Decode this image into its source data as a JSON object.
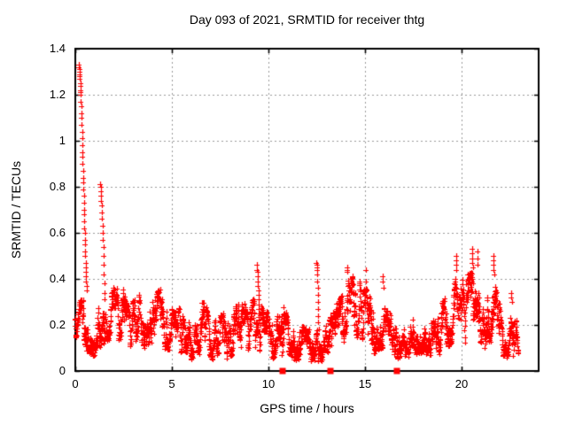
{
  "title": "Day 093 of 2021, SRMTID for receiver thtg",
  "chart_data": {
    "type": "scatter",
    "title": "Day 093 of 2021, SRMTID for receiver thtg",
    "xlabel": "GPS time / hours",
    "ylabel": "SRMTID / TECUs",
    "xlim": [
      0,
      24
    ],
    "ylim": [
      0,
      1.4
    ],
    "xticks": {
      "values": [
        0,
        5,
        10,
        15,
        20
      ],
      "labels": [
        "0",
        "5",
        "10",
        "15",
        "20"
      ]
    },
    "yticks": {
      "values": [
        0,
        0.2,
        0.4,
        0.6,
        0.8,
        1.0,
        1.2,
        1.4
      ],
      "labels": [
        "0",
        "0.2",
        "0.4",
        "0.6",
        "0.8",
        "1",
        "1.2",
        "1.4"
      ]
    },
    "grid": true,
    "legend": "none",
    "marker": {
      "shape": "plus",
      "color": "#ff0000",
      "size": 6
    },
    "zero_flag_markers": {
      "shape": "filled-square",
      "color": "#ff0000",
      "size": 7,
      "y": 0,
      "x": [
        10.75,
        13.2,
        16.67
      ]
    },
    "band_envelope": {
      "description": "dense 30-second SRMTID samples oscillating between lo and hi TECUs; breakpoints [hour, lo, hi]",
      "points": [
        [
          0.0,
          0.14,
          0.3
        ],
        [
          0.5,
          0.1,
          0.32
        ],
        [
          0.9,
          0.06,
          0.22
        ],
        [
          1.2,
          0.1,
          0.28
        ],
        [
          1.7,
          0.12,
          0.34
        ],
        [
          2.0,
          0.13,
          0.36
        ],
        [
          2.4,
          0.12,
          0.37
        ],
        [
          2.8,
          0.1,
          0.26
        ],
        [
          3.2,
          0.14,
          0.37
        ],
        [
          3.6,
          0.1,
          0.3
        ],
        [
          4.0,
          0.1,
          0.31
        ],
        [
          4.4,
          0.13,
          0.38
        ],
        [
          4.8,
          0.08,
          0.3
        ],
        [
          5.2,
          0.06,
          0.26
        ],
        [
          5.6,
          0.09,
          0.31
        ],
        [
          6.0,
          0.05,
          0.26
        ],
        [
          6.4,
          0.08,
          0.31
        ],
        [
          6.8,
          0.07,
          0.28
        ],
        [
          7.2,
          0.04,
          0.22
        ],
        [
          7.6,
          0.05,
          0.26
        ],
        [
          8.1,
          0.06,
          0.26
        ],
        [
          8.5,
          0.09,
          0.3
        ],
        [
          8.9,
          0.08,
          0.28
        ],
        [
          9.2,
          0.1,
          0.32
        ],
        [
          9.6,
          0.08,
          0.28
        ],
        [
          10.0,
          0.06,
          0.26
        ],
        [
          10.4,
          0.05,
          0.24
        ],
        [
          10.8,
          0.07,
          0.28
        ],
        [
          11.2,
          0.04,
          0.18
        ],
        [
          11.6,
          0.05,
          0.22
        ],
        [
          12.0,
          0.04,
          0.18
        ],
        [
          12.4,
          0.05,
          0.2
        ],
        [
          12.8,
          0.03,
          0.15
        ],
        [
          13.2,
          0.06,
          0.24
        ],
        [
          13.6,
          0.09,
          0.3
        ],
        [
          14.0,
          0.13,
          0.38
        ],
        [
          14.3,
          0.15,
          0.42
        ],
        [
          14.7,
          0.14,
          0.4
        ],
        [
          15.1,
          0.12,
          0.36
        ],
        [
          15.5,
          0.08,
          0.27
        ],
        [
          15.9,
          0.1,
          0.33
        ],
        [
          16.2,
          0.07,
          0.26
        ],
        [
          16.6,
          0.05,
          0.22
        ],
        [
          17.0,
          0.06,
          0.24
        ],
        [
          17.4,
          0.07,
          0.28
        ],
        [
          17.8,
          0.08,
          0.3
        ],
        [
          18.2,
          0.08,
          0.3
        ],
        [
          18.6,
          0.06,
          0.24
        ],
        [
          19.0,
          0.08,
          0.3
        ],
        [
          19.4,
          0.11,
          0.35
        ],
        [
          19.8,
          0.14,
          0.43
        ],
        [
          20.1,
          0.12,
          0.39
        ],
        [
          20.5,
          0.14,
          0.44
        ],
        [
          20.8,
          0.13,
          0.4
        ],
        [
          21.2,
          0.1,
          0.34
        ],
        [
          21.6,
          0.13,
          0.41
        ],
        [
          21.9,
          0.11,
          0.33
        ],
        [
          22.1,
          0.07,
          0.22
        ],
        [
          22.35,
          0.05,
          0.14
        ],
        [
          22.55,
          0.07,
          0.3
        ],
        [
          22.75,
          0.06,
          0.26
        ],
        [
          22.95,
          0.05,
          0.18
        ]
      ]
    },
    "outlier_columns": [
      {
        "x0": 0.18,
        "dx": 0.009,
        "ys": [
          1.33,
          1.33,
          1.32,
          1.31,
          1.3,
          1.29,
          1.28,
          1.27,
          1.25,
          1.24,
          1.22,
          1.21,
          1.2,
          1.17,
          1.15,
          1.12,
          1.1,
          1.07,
          1.04,
          1.01,
          0.98,
          0.95,
          0.93,
          0.9,
          0.87,
          0.84,
          0.82,
          0.79,
          0.76,
          0.73,
          0.7,
          0.68,
          0.65,
          0.62,
          0.6,
          0.57,
          0.55,
          0.52,
          0.5,
          0.47,
          0.45,
          0.43,
          0.41,
          0.39,
          0.37,
          0.35
        ]
      },
      {
        "x0": 1.3,
        "dx": 0.013,
        "ys": [
          0.81,
          0.8,
          0.78,
          0.76,
          0.74,
          0.72,
          0.69,
          0.66,
          0.63,
          0.6,
          0.57,
          0.54,
          0.5,
          0.46,
          0.42,
          0.38,
          0.34,
          0.31
        ]
      },
      {
        "x0": 9.42,
        "dx": 0.01,
        "ys": [
          0.46,
          0.44,
          0.43,
          0.41,
          0.39,
          0.37,
          0.35,
          0.33,
          0.31,
          0.29,
          0.27,
          0.25
        ]
      },
      {
        "x0": 12.5,
        "dx": 0.009,
        "ys": [
          0.47,
          0.46,
          0.45,
          0.44,
          0.42,
          0.39,
          0.36,
          0.33,
          0.3,
          0.27,
          0.24,
          0.21,
          0.18
        ]
      },
      {
        "x0": 14.08,
        "dx": 0.012,
        "ys": [
          0.45,
          0.44,
          0.43
        ]
      },
      {
        "x0": 15.05,
        "dx": 0.012,
        "ys": [
          0.44,
          0.39
        ]
      },
      {
        "x0": 15.93,
        "dx": 0.012,
        "ys": [
          0.41,
          0.39,
          0.36
        ]
      },
      {
        "x0": 19.72,
        "dx": 0.01,
        "ys": [
          0.5,
          0.48,
          0.46,
          0.44
        ]
      },
      {
        "x0": 20.55,
        "dx": 0.01,
        "ys": [
          0.53,
          0.51,
          0.49,
          0.47,
          0.45
        ]
      },
      {
        "x0": 20.82,
        "dx": 0.012,
        "ys": [
          0.52,
          0.49,
          0.46
        ]
      },
      {
        "x0": 21.65,
        "dx": 0.01,
        "ys": [
          0.5,
          0.48,
          0.46,
          0.44,
          0.42
        ]
      },
      {
        "x0": 22.58,
        "dx": 0.012,
        "ys": [
          0.34,
          0.32,
          0.3
        ]
      }
    ],
    "sampling": {
      "t_start": 0.0,
      "t_end": 22.95,
      "step_hours": 0.008333,
      "seed": 11,
      "gap_probability": 0.02
    }
  },
  "colors": {
    "marker": "#ff0000",
    "grid": "#9a9a9a",
    "border": "#000000",
    "background": "#ffffff",
    "text": "#000000"
  }
}
